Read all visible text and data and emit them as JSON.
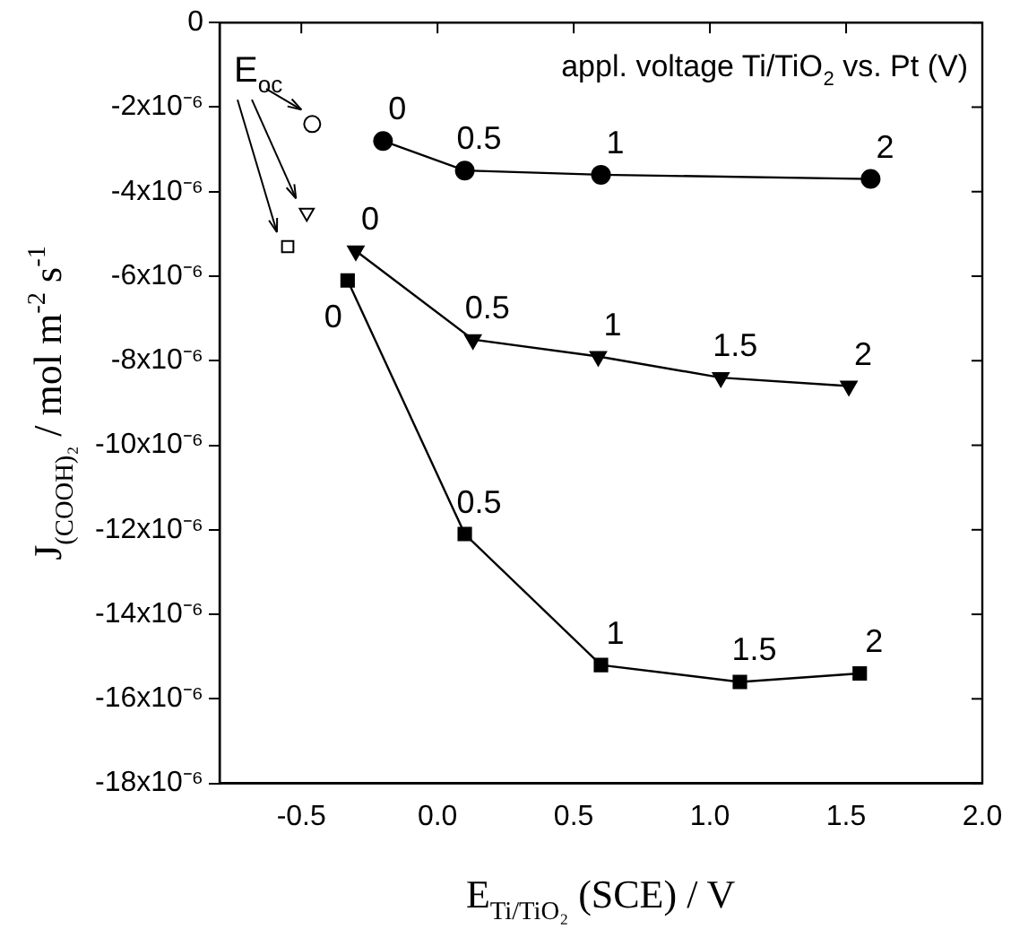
{
  "chart_data": {
    "type": "line",
    "xlabel": "E$_{Ti/TiO₂}$ (SCE) / V",
    "ylabel": "J$_{(COOH)₂}$ / mol m$^{-2}$ s$^{-1}$",
    "xlim": [
      -0.8,
      2.0
    ],
    "xticks": [
      {
        "value": -0.5,
        "label": "-0.5"
      },
      {
        "value": 0,
        "label": "0.0"
      },
      {
        "value": 0.5,
        "label": "0.5"
      },
      {
        "value": 1,
        "label": "1.0"
      },
      {
        "value": 1.5,
        "label": "1.5"
      },
      {
        "value": 2,
        "label": "2.0"
      }
    ],
    "ylim": [
      -1.8e-05,
      0
    ],
    "yticks": [
      {
        "value": -1.8e-05,
        "label": "-18x10⁻⁶"
      },
      {
        "value": -1.6e-05,
        "label": "-16x10⁻⁶"
      },
      {
        "value": -1.4e-05,
        "label": "-14x10⁻⁶"
      },
      {
        "value": -1.2e-05,
        "label": "-12x10⁻⁶"
      },
      {
        "value": -1e-05,
        "label": "-10x10⁻⁶"
      },
      {
        "value": -8e-06,
        "label": "-8x10⁻⁶"
      },
      {
        "value": -6e-06,
        "label": "-6x10⁻⁶"
      },
      {
        "value": -4e-06,
        "label": "-4x10⁻⁶"
      },
      {
        "value": -2e-06,
        "label": "-2x10⁻⁶"
      },
      {
        "value": 0,
        "label": "0"
      }
    ],
    "grid": false,
    "legend": false,
    "series": [
      {
        "type": "line",
        "marker": "circle",
        "color": "#000000",
        "x": [
          -0.2,
          0.1,
          0.6,
          1.59
        ],
        "values": [
          -2.8e-06,
          -3.5e-06,
          -3.6e-06,
          -3.7e-06
        ]
      },
      {
        "type": "line",
        "marker": "triangle",
        "color": "#000000",
        "x": [
          -0.3,
          0.13,
          0.59,
          1.04,
          1.51
        ],
        "values": [
          -5.4e-06,
          -7.5e-06,
          -7.9e-06,
          -8.4e-06,
          -8.6e-06
        ]
      },
      {
        "type": "line",
        "marker": "square",
        "color": "#000000",
        "x": [
          -0.33,
          0.1,
          0.6,
          1.11,
          1.55
        ],
        "values": [
          -6.1e-06,
          -1.21e-05,
          -1.52e-05,
          -1.56e-05,
          -1.54e-05
        ]
      },
      {
        "type": "scatter",
        "marker": "circle",
        "color": "#000000",
        "x": [
          -0.46
        ],
        "values": [
          -2.4e-06
        ]
      },
      {
        "type": "scatter",
        "marker": "triangle",
        "color": "#000000",
        "x": [
          -0.48
        ],
        "values": [
          -4.5e-06
        ]
      },
      {
        "type": "scatter",
        "marker": "square",
        "color": "#000000",
        "x": [
          -0.55
        ],
        "values": [
          -5.3e-06
        ]
      }
    ],
    "annotations": [
      "appl. voltage Ti/TiO$_{2}$ vs. Pt (V)",
      "E$_{oc}$",
      {
        "text": "0",
        "x": -0.2,
        "y": -2.8e-06
      },
      {
        "text": "0.5",
        "x": 0.1,
        "y": -3.5e-06
      },
      {
        "text": "1",
        "x": 0.6,
        "y": -3.6e-06
      },
      {
        "text": "2",
        "x": 1.59,
        "y": -3.7e-06
      },
      {
        "text": "0",
        "x": -0.3,
        "y": -5.4e-06
      },
      {
        "text": "0.5",
        "x": 0.13,
        "y": -7.5e-06
      },
      {
        "text": "1",
        "x": 0.59,
        "y": -7.9e-06
      },
      {
        "text": "1.5",
        "x": 1.04,
        "y": -8.4e-06
      },
      {
        "text": "2",
        "x": 1.51,
        "y": -8.6e-06
      },
      {
        "text": "0",
        "x": -0.33,
        "y": -6.1e-06
      },
      {
        "text": "0.5",
        "x": 0.1,
        "y": -1.21e-05
      },
      {
        "text": "1",
        "x": 0.6,
        "y": -1.52e-05
      },
      {
        "text": "1.5",
        "x": 1.11,
        "y": -1.56e-05
      },
      {
        "text": "2",
        "x": 1.55,
        "y": -1.54e-05
      }
    ]
  }
}
